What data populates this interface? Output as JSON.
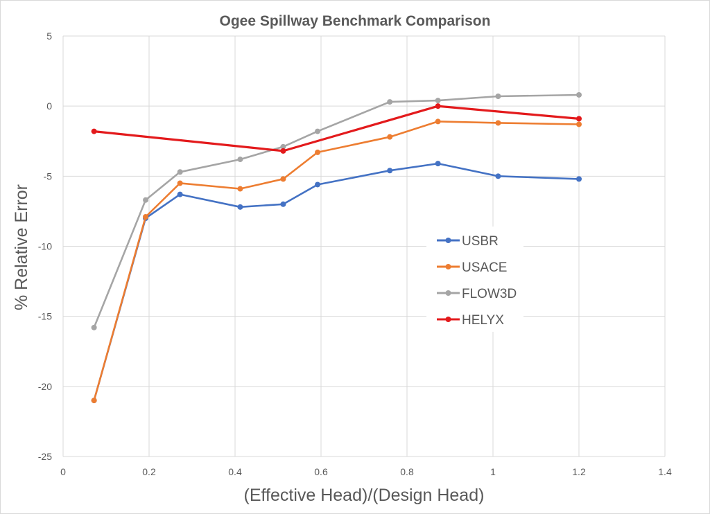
{
  "chart_data": {
    "type": "line",
    "title": "Ogee Spillway Benchmark Comparison",
    "xlabel": "(Effective Head)/(Design Head)",
    "ylabel": "% Relative Error",
    "xlim": [
      0,
      1.4
    ],
    "ylim": [
      -25,
      5
    ],
    "xticks": [
      0,
      0.2,
      0.4,
      0.6,
      0.8,
      1,
      1.2,
      1.4
    ],
    "xtick_labels": [
      "0",
      "0.2",
      "0.4",
      "0.6",
      "0.8",
      "1",
      "1.2",
      "1.4"
    ],
    "yticks": [
      -25,
      -20,
      -15,
      -10,
      -5,
      0,
      5
    ],
    "ytick_labels": [
      "-25",
      "-20",
      "-15",
      "-10",
      "-5",
      "0",
      "5"
    ],
    "grid": true,
    "legend_position": "center-right",
    "series": [
      {
        "name": "USBR",
        "color": "#4472c4",
        "x": [
          0.072,
          0.192,
          0.272,
          0.412,
          0.512,
          0.592,
          0.76,
          0.872,
          1.012,
          1.2
        ],
        "y": [
          -21.0,
          -8.0,
          -6.3,
          -7.2,
          -7.0,
          -5.6,
          -4.6,
          -4.1,
          -5.0,
          -5.2
        ]
      },
      {
        "name": "USACE",
        "color": "#ed7d31",
        "x": [
          0.072,
          0.192,
          0.272,
          0.412,
          0.512,
          0.592,
          0.76,
          0.872,
          1.012,
          1.2
        ],
        "y": [
          -21.0,
          -7.9,
          -5.5,
          -5.9,
          -5.2,
          -3.3,
          -2.2,
          -1.1,
          -1.2,
          -1.3
        ]
      },
      {
        "name": "FLOW3D",
        "color": "#a5a5a5",
        "x": [
          0.072,
          0.192,
          0.272,
          0.412,
          0.512,
          0.592,
          0.76,
          0.872,
          1.012,
          1.2
        ],
        "y": [
          -15.8,
          -6.7,
          -4.7,
          -3.8,
          -2.9,
          -1.8,
          0.3,
          0.4,
          0.7,
          0.8
        ]
      },
      {
        "name": "HELYX",
        "color": "#e31a1c",
        "x": [
          0.072,
          0.512,
          0.872,
          1.2
        ],
        "y": [
          -1.8,
          -3.2,
          0.0,
          -0.9
        ]
      }
    ]
  }
}
